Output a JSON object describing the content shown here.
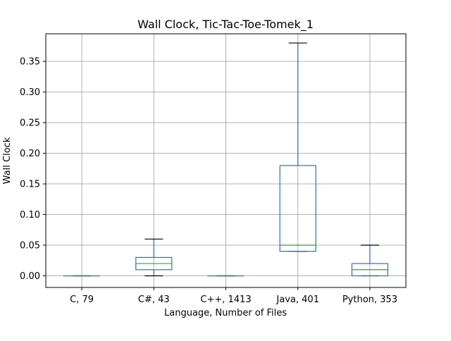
{
  "chart_data": {
    "type": "box",
    "title": "Wall Clock, Tic-Tac-Toe-Tomek_1",
    "xlabel": "Language, Number of Files",
    "ylabel": "Wall Clock",
    "ylim": [
      -0.019,
      0.395
    ],
    "yticks": [
      "0.00",
      "0.05",
      "0.10",
      "0.15",
      "0.20",
      "0.25",
      "0.30",
      "0.35"
    ],
    "ytick_values": [
      0.0,
      0.05,
      0.1,
      0.15,
      0.2,
      0.25,
      0.3,
      0.35
    ],
    "grid": true,
    "categories": [
      "C, 79",
      "C#, 43",
      "C++, 1413",
      "Java, 401",
      "Python, 353"
    ],
    "boxes": [
      {
        "whislo": 0.0,
        "q1": 0.0,
        "med": 0.0,
        "q3": 0.0,
        "whishi": 0.0
      },
      {
        "whislo": 0.0,
        "q1": 0.01,
        "med": 0.02,
        "q3": 0.03,
        "whishi": 0.06
      },
      {
        "whislo": 0.0,
        "q1": 0.0,
        "med": 0.0,
        "q3": 0.0,
        "whishi": 0.0
      },
      {
        "whislo": 0.04,
        "q1": 0.04,
        "med": 0.05,
        "q3": 0.18,
        "whishi": 0.38
      },
      {
        "whislo": 0.0,
        "q1": 0.0,
        "med": 0.01,
        "q3": 0.02,
        "whishi": 0.05
      }
    ],
    "colors": {
      "box": "#1f77b4",
      "median": "#2ca02c",
      "cap": "#000000",
      "grid": "#b0b0b0"
    }
  }
}
